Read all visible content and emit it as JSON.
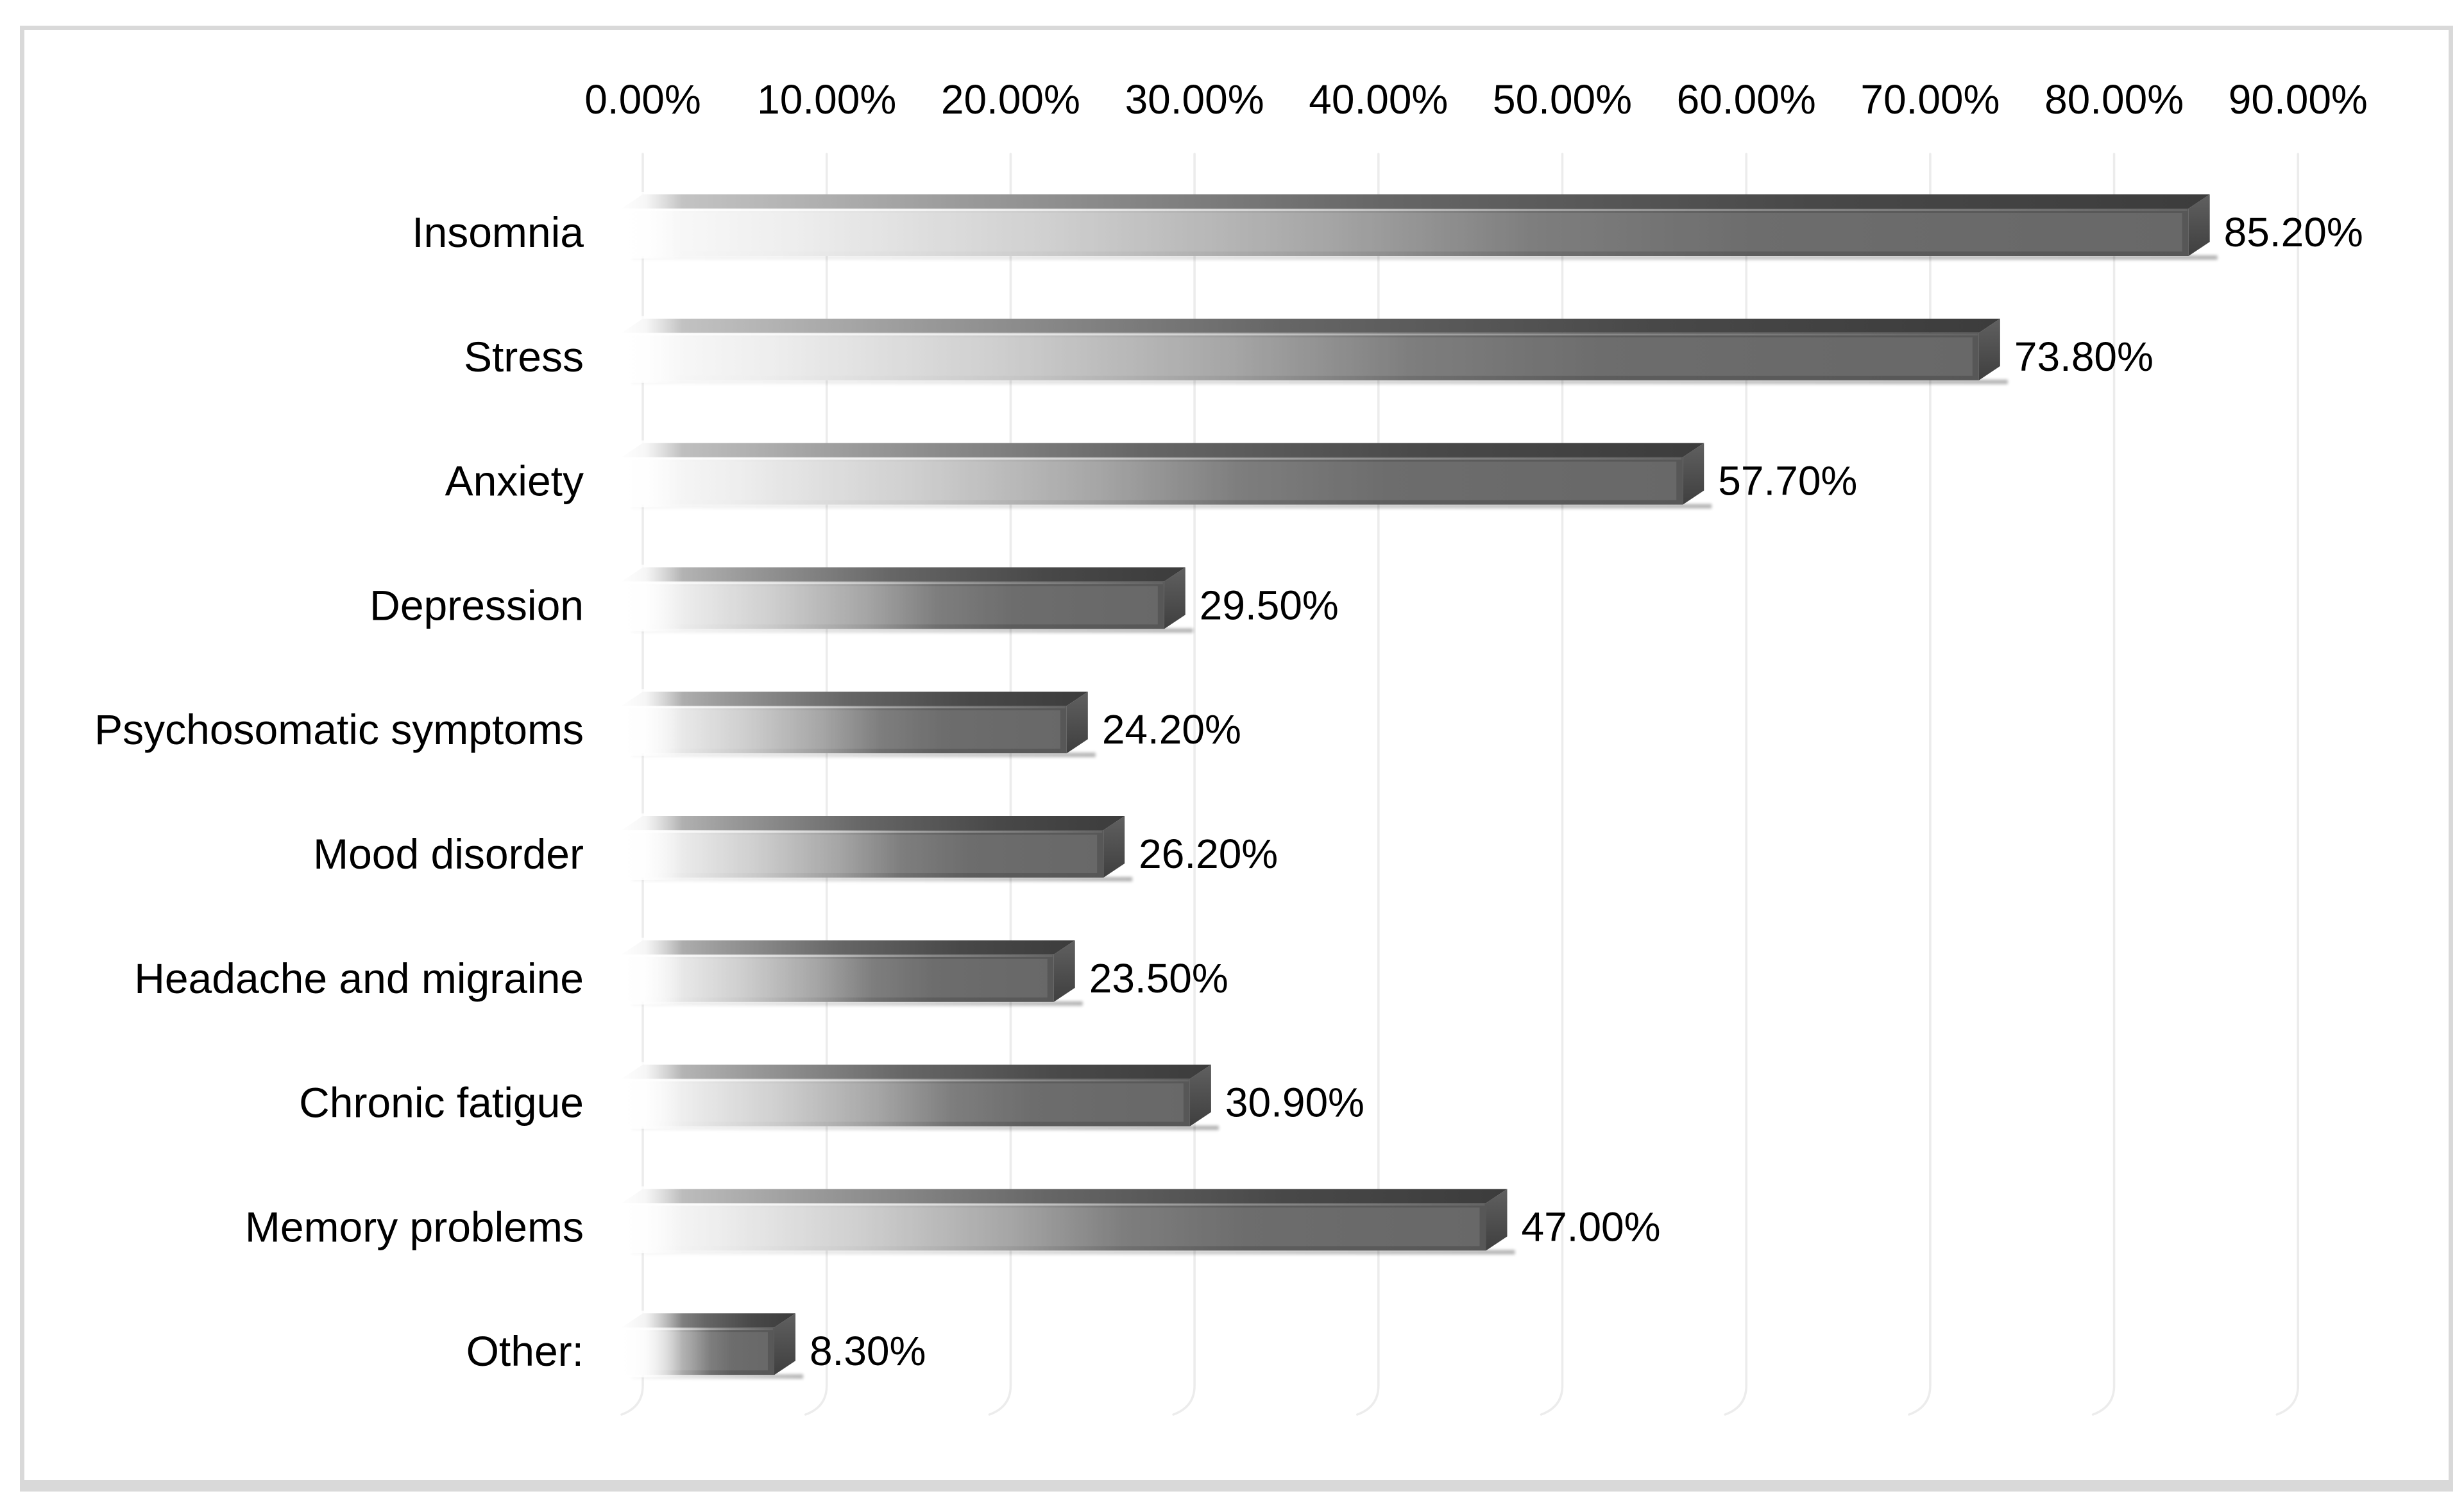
{
  "figure": {
    "background_color": "#ffffff",
    "frame_border_color": "#d9d9d9",
    "floor_band_color": "#d9d9d9"
  },
  "chart_data": {
    "type": "bar",
    "orientation": "horizontal",
    "title": "",
    "xlabel": "",
    "ylabel": "",
    "categories": [
      "Insomnia",
      "Stress",
      "Anxiety",
      "Depression",
      "Psychosomatic symptoms",
      "Mood disorder",
      "Headache and migraine",
      "Chronic fatigue",
      "Memory problems",
      "Other:"
    ],
    "values": [
      85.2,
      73.8,
      57.7,
      29.5,
      24.2,
      26.2,
      23.5,
      30.9,
      47.0,
      8.3
    ],
    "value_labels": [
      "85.20%",
      "73.80%",
      "57.70%",
      "29.50%",
      "24.20%",
      "26.20%",
      "23.50%",
      "30.90%",
      "47.00%",
      "8.30%"
    ],
    "x_ticks": [
      "0.00%",
      "10.00%",
      "20.00%",
      "30.00%",
      "40.00%",
      "50.00%",
      "60.00%",
      "70.00%",
      "80.00%",
      "90.00%"
    ],
    "xlim": [
      0,
      90
    ],
    "grid": true,
    "tick_position": "top",
    "legend": null,
    "bar_style": "3d-beveled-gradient",
    "colors": {
      "text": "#000000",
      "gridline": "#ececec",
      "front_gradient": [
        [
          "0%",
          "#fcfcfc"
        ],
        [
          "10%",
          "#eeeeee"
        ],
        [
          "28%",
          "#c9c9c9"
        ],
        [
          "45%",
          "#9c9c9c"
        ],
        [
          "58%",
          "#707070"
        ],
        [
          "72%",
          "#5d5d5d"
        ],
        [
          "100%",
          "#575757"
        ]
      ],
      "top_gradient": [
        [
          "0%",
          "#cccccc"
        ],
        [
          "22%",
          "#999999"
        ],
        [
          "48%",
          "#666666"
        ],
        [
          "75%",
          "#484848"
        ],
        [
          "100%",
          "#3c3c3c"
        ]
      ],
      "end_cap_top": "#606060",
      "end_cap_bottom": "#3f3f3f"
    }
  }
}
